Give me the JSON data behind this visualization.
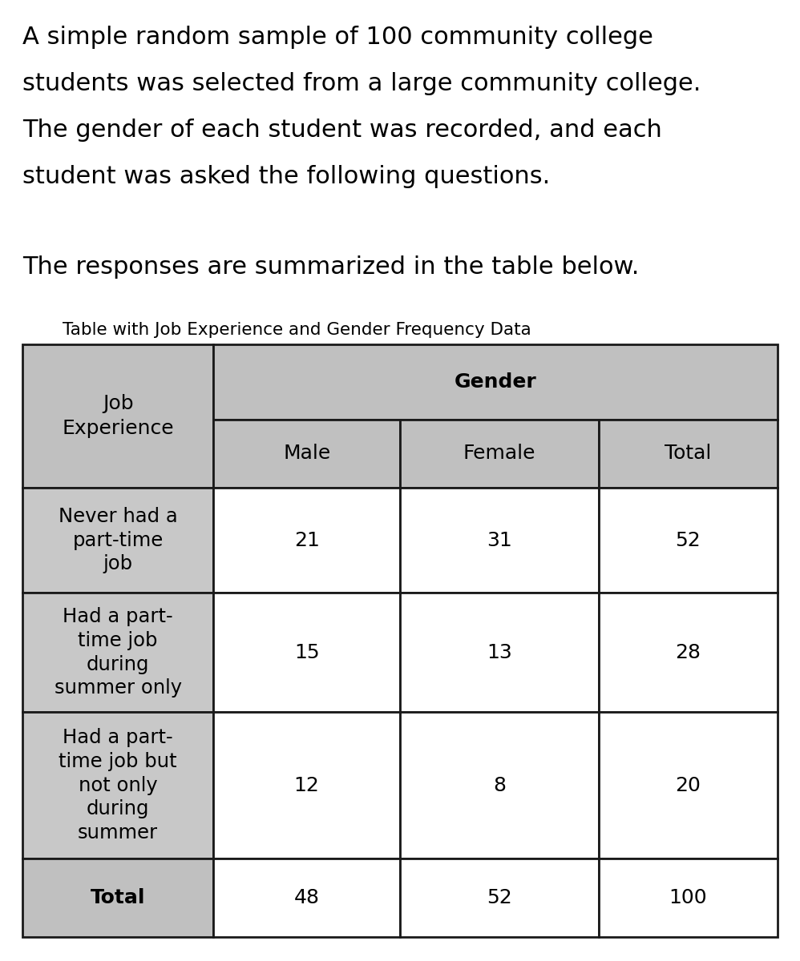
{
  "intro_text_lines": [
    "A simple random sample of 100 community college",
    "students was selected from a large community college.",
    "The gender of each student was recorded, and each",
    "student was asked the following questions."
  ],
  "summary_text": "The responses are summarized in the table below.",
  "table_caption": "Table with Job Experience and Gender Frequency Data",
  "header_bg": "#c0c0c0",
  "total_row_bg": "#c0c0c0",
  "data_row_bg": "#ffffff",
  "job_exp_col_bg": "#c8c8c8",
  "border_color": "#1a1a1a",
  "text_color": "#000000",
  "col_headers": [
    "Male",
    "Female",
    "Total"
  ],
  "gender_header": "Gender",
  "row_labels": [
    "Never had a\npart-time\njob",
    "Had a part-\ntime job\nduring\nsummer only",
    "Had a part-\ntime job but\nnot only\nduring\nsummer"
  ],
  "data": [
    [
      21,
      31,
      52
    ],
    [
      15,
      13,
      28
    ],
    [
      12,
      8,
      20
    ]
  ],
  "totals": [
    48,
    52,
    100
  ],
  "row_label_col_header": "Job\nExperience",
  "total_label": "Total",
  "intro_fontsize": 22,
  "table_fontsize": 18,
  "caption_fontsize": 15.5
}
